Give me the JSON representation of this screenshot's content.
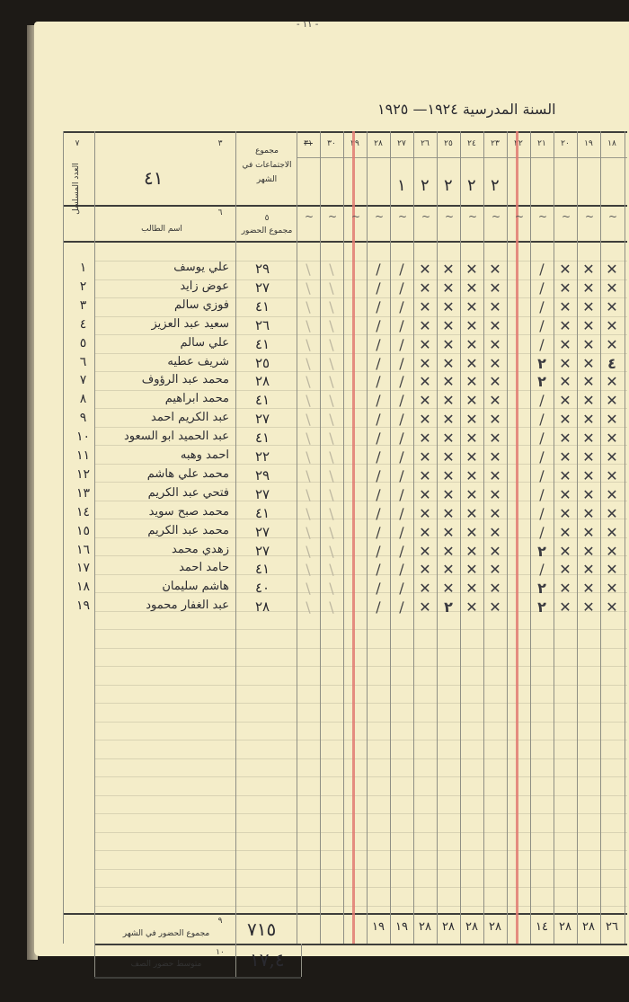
{
  "page_number": "- ١١ -",
  "school_year_label": "السنة المدرسية ١٩٢٤— ١٩٢٥",
  "header": {
    "serial_col_number": "٧",
    "serial_col_label": "العدد المسلسل",
    "name_col_number_top": "٣",
    "meetings_value": "٤١",
    "meetings_label": "مجموع الاجتماعات في الشهر",
    "name_col_number": "٦",
    "name_col_label": "اسم الطالب",
    "attendance_col_number": "٥",
    "attendance_col_label": "مجموع الحضور"
  },
  "days": [
    "١٨",
    "١٩",
    "٢٠",
    "٢١",
    "٢٢",
    "٢٣",
    "٢٤",
    "٢٥",
    "٢٦",
    "٢٧",
    "٢٨",
    "٢٩",
    "٣٠",
    "٣١"
  ],
  "holiday_days": [
    "٢٢",
    "٢٩"
  ],
  "day_sessions": {
    "٢٣": "٢",
    "٢٤": "٢",
    "٢٥": "٢",
    "٢٦": "٢",
    "٢٧": "١"
  },
  "students": [
    {
      "n": "١",
      "name": "علي يوسف",
      "total": "٢٩",
      "marks": "xxx/xxxx//"
    },
    {
      "n": "٢",
      "name": "عوض زايد",
      "total": "٢٧",
      "marks": "xxx/xxxx//"
    },
    {
      "n": "٣",
      "name": "فوزي سالم",
      "total": "٤١",
      "marks": "xxx/xxxx//"
    },
    {
      "n": "٤",
      "name": "سعيد عبد العزيز",
      "total": "٢٦",
      "marks": "xxx/xxxx//"
    },
    {
      "n": "٥",
      "name": "علي سالم",
      "total": "٤١",
      "marks": "xxx/xxxx//"
    },
    {
      "n": "٦",
      "name": "شريف عطيه",
      "total": "٢٥",
      "marks": "4xx2xxxx//"
    },
    {
      "n": "٧",
      "name": "محمد عبد الرؤوف",
      "total": "٢٨",
      "marks": "xxx2xxxx//"
    },
    {
      "n": "٨",
      "name": "محمد ابراهيم",
      "total": "٤١",
      "marks": "xxx/xxxx//"
    },
    {
      "n": "٩",
      "name": "عبد الكريم احمد",
      "total": "٢٧",
      "marks": "xxx/xxxx//"
    },
    {
      "n": "١٠",
      "name": "عبد الحميد ابو السعود",
      "total": "٤١",
      "marks": "xxx/xxxx//"
    },
    {
      "n": "١١",
      "name": "احمد وهبه",
      "total": "٢٢",
      "marks": "xxx/xxxx//"
    },
    {
      "n": "١٢",
      "name": "محمد علي هاشم",
      "total": "٢٩",
      "marks": "xxx/xxxx//"
    },
    {
      "n": "١٣",
      "name": "فتحي عبد الكريم",
      "total": "٢٧",
      "marks": "xxx/xxxx//"
    },
    {
      "n": "١٤",
      "name": "محمد صبح سويد",
      "total": "٤١",
      "marks": "xxx/xxxx//"
    },
    {
      "n": "١٥",
      "name": "محمد عبد الكريم",
      "total": "٢٧",
      "marks": "xxx/xxxx//"
    },
    {
      "n": "١٦",
      "name": "زهدي محمد",
      "total": "٢٧",
      "marks": "xxx2xxxx//"
    },
    {
      "n": "١٧",
      "name": "حامد احمد",
      "total": "٤١",
      "marks": "xxx/xxxx//"
    },
    {
      "n": "١٨",
      "name": "هاشم سليمان",
      "total": "٤٠",
      "marks": "xxx2xxxx//"
    },
    {
      "n": "١٩",
      "name": "عبد الغفار محمود",
      "total": "٢٨",
      "marks": "xxx2xx2x//"
    }
  ],
  "footer": {
    "monthly_number": "٩",
    "monthly_label": "مجموع الحضور في الشهر",
    "monthly_total": "٧١٥",
    "day_totals": {
      "١٨": "٢٦",
      "١٩": "٢٨",
      "٢٠": "٢٨",
      "٢١": "١٤",
      "٢٣": "٢٨",
      "٢٤": "٢٨",
      "٢٥": "٢٨",
      "٢٦": "٢٨",
      "٢٧": "١٩",
      "٢٨": "١٩"
    },
    "average_number": "١٠",
    "average_label": "متوسط حضور الصف",
    "average_value": "١٧,٤"
  }
}
